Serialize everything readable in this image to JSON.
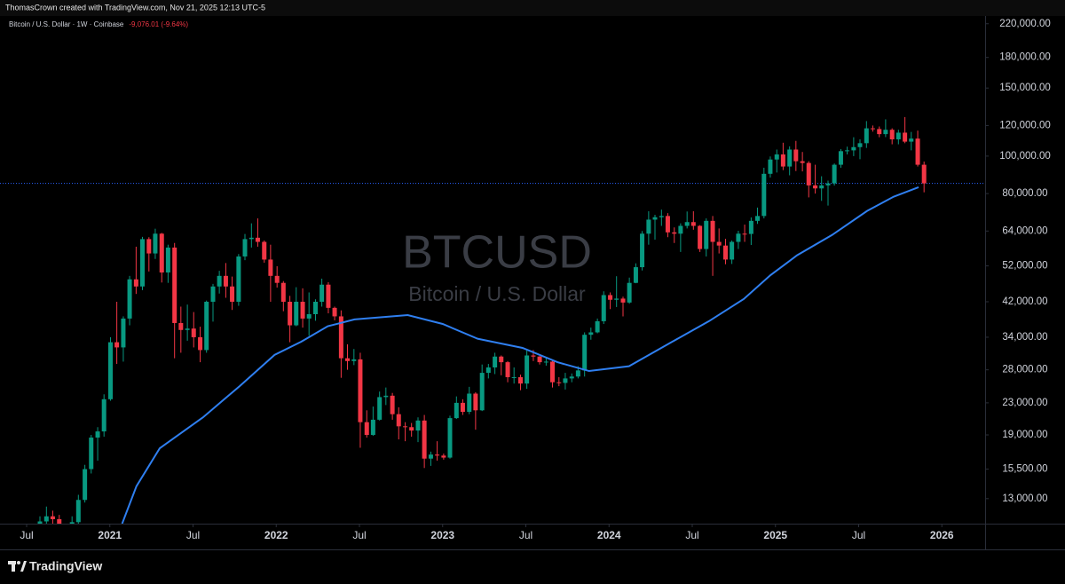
{
  "header": {
    "text": "ThomasCrown created with TradingView.com, Nov 21, 2025 12:13 UTC-5"
  },
  "footer": {
    "brand": "TradingView"
  },
  "chart_data": {
    "type": "candlestick",
    "title": "BTCUSD",
    "subtitle": "Bitcoin / U.S. Dollar",
    "legend_text": "Bitcoin / U.S. Dollar · 1W · Coinbase",
    "change_label": "-9,076.01 (-9.64%)",
    "log_scale": true,
    "grid": false,
    "up_color": "#089981",
    "down_color": "#f23645",
    "x": [
      2020.58,
      2020.619,
      2020.657,
      2020.696,
      2020.734,
      2020.773,
      2020.811,
      2020.85,
      2020.888,
      2020.927,
      2020.965,
      2021.004,
      2021.042,
      2021.081,
      2021.119,
      2021.158,
      2021.196,
      2021.235,
      2021.273,
      2021.312,
      2021.35,
      2021.389,
      2021.427,
      2021.466,
      2021.504,
      2021.543,
      2021.581,
      2021.62,
      2021.658,
      2021.697,
      2021.735,
      2021.774,
      2021.812,
      2021.851,
      2021.889,
      2021.928,
      2021.966,
      2022.005,
      2022.043,
      2022.082,
      2022.12,
      2022.159,
      2022.197,
      2022.236,
      2022.274,
      2022.313,
      2022.351,
      2022.39,
      2022.428,
      2022.467,
      2022.505,
      2022.544,
      2022.582,
      2022.621,
      2022.659,
      2022.698,
      2022.736,
      2022.775,
      2022.813,
      2022.852,
      2022.89,
      2022.929,
      2022.967,
      2023.006,
      2023.044,
      2023.083,
      2023.121,
      2023.16,
      2023.198,
      2023.237,
      2023.275,
      2023.314,
      2023.352,
      2023.391,
      2023.429,
      2023.468,
      2023.506,
      2023.545,
      2023.583,
      2023.622,
      2023.66,
      2023.699,
      2023.737,
      2023.776,
      2023.814,
      2023.853,
      2023.891,
      2023.93,
      2023.968,
      2024.007,
      2024.045,
      2024.084,
      2024.122,
      2024.161,
      2024.199,
      2024.238,
      2024.276,
      2024.315,
      2024.353,
      2024.392,
      2024.43,
      2024.469,
      2024.507,
      2024.546,
      2024.584,
      2024.623,
      2024.661,
      2024.7,
      2024.738,
      2024.777,
      2024.815,
      2024.854,
      2024.892,
      2024.931,
      2024.969,
      2025.008,
      2025.046,
      2025.085,
      2025.123,
      2025.162,
      2025.2,
      2025.239,
      2025.277,
      2025.316,
      2025.354,
      2025.393,
      2025.431,
      2025.47,
      2025.508,
      2025.547,
      2025.585,
      2025.624,
      2025.662,
      2025.701,
      2025.739,
      2025.778,
      2025.816,
      2025.855,
      2025.893
    ],
    "open": [
      11100,
      11350,
      11700,
      11500,
      10300,
      10900,
      11300,
      12900,
      15500,
      18700,
      19400,
      23500,
      33000,
      32000,
      38000,
      48000,
      46000,
      61000,
      56000,
      63000,
      50000,
      58000,
      37000,
      35500,
      35800,
      34000,
      31500,
      42000,
      46000,
      49000,
      46000,
      42000,
      55000,
      61000,
      61500,
      60000,
      54000,
      49000,
      47000,
      42000,
      36500,
      42000,
      38000,
      39000,
      42000,
      46500,
      40500,
      38500,
      30000,
      29500,
      29800,
      20500,
      19000,
      20800,
      23800,
      24000,
      21500,
      20000,
      19900,
      19500,
      20700,
      16500,
      16900,
      16800,
      16600,
      21000,
      23000,
      21800,
      24300,
      22000,
      27500,
      28400,
      30300,
      29300,
      26800,
      26800,
      25800,
      30500,
      30300,
      29300,
      29400,
      26000,
      25900,
      26600,
      26900,
      27900,
      34500,
      35000,
      37400,
      43700,
      42500,
      42800,
      41800,
      47000,
      51600,
      63000,
      68500,
      69500,
      70000,
      63500,
      63000,
      66000,
      67500,
      66000,
      57500,
      68000,
      60000,
      58700,
      54000,
      60000,
      63000,
      62900,
      68000,
      70000,
      90000,
      98000,
      101000,
      94000,
      104000,
      97000,
      96000,
      84000,
      82500,
      84000,
      85000,
      95000,
      103000,
      103500,
      105500,
      108000,
      118000,
      117500,
      114000,
      117000,
      110500,
      115000,
      109000,
      111000,
      95000
    ],
    "high": [
      11700,
      12400,
      12100,
      11800,
      11200,
      11700,
      13300,
      15900,
      19000,
      19900,
      24200,
      34000,
      42000,
      38500,
      49000,
      58300,
      61800,
      61700,
      64900,
      63300,
      59000,
      59600,
      40800,
      41300,
      39500,
      36200,
      42300,
      46700,
      50500,
      52900,
      48800,
      55800,
      62900,
      67000,
      69000,
      60500,
      59000,
      51900,
      47500,
      43500,
      45800,
      45500,
      44400,
      42600,
      48200,
      47200,
      40800,
      39900,
      32600,
      31700,
      31000,
      22000,
      22500,
      24600,
      25200,
      24400,
      22400,
      20500,
      20400,
      21100,
      21400,
      17200,
      18300,
      17000,
      21300,
      23900,
      23500,
      25300,
      24500,
      28900,
      29000,
      31000,
      30500,
      29500,
      28400,
      27200,
      31400,
      31500,
      30400,
      30200,
      29600,
      26800,
      27500,
      27400,
      28600,
      35000,
      36000,
      38000,
      44700,
      44400,
      48900,
      43300,
      48500,
      52800,
      64000,
      72000,
      70500,
      72700,
      71200,
      65400,
      67000,
      71900,
      72000,
      66300,
      69000,
      70000,
      65000,
      61100,
      60500,
      64100,
      66500,
      69400,
      73600,
      93300,
      99800,
      104000,
      108300,
      106000,
      109500,
      102500,
      97000,
      95000,
      88700,
      86400,
      95700,
      104300,
      105800,
      111900,
      110500,
      123200,
      120000,
      119300,
      124500,
      118000,
      117000,
      126200,
      115500,
      116400,
      96800
    ],
    "low": [
      10800,
      11100,
      11200,
      9900,
      10100,
      10500,
      11200,
      12700,
      15100,
      16300,
      18800,
      23300,
      29000,
      29400,
      36500,
      44000,
      45000,
      50300,
      54200,
      47100,
      47000,
      30000,
      31000,
      33300,
      32000,
      29300,
      31000,
      37300,
      44100,
      43000,
      40000,
      41000,
      53800,
      58000,
      58300,
      53000,
      42000,
      45700,
      39700,
      33000,
      36300,
      36000,
      34300,
      37500,
      40800,
      39200,
      37600,
      26700,
      28000,
      28800,
      17600,
      18700,
      18900,
      20700,
      22700,
      20800,
      18500,
      18300,
      18800,
      18200,
      15600,
      15800,
      16300,
      16400,
      16500,
      20900,
      21400,
      21500,
      19600,
      21900,
      26600,
      27300,
      27100,
      26000,
      25800,
      24800,
      25000,
      29500,
      28900,
      28700,
      25200,
      25400,
      24900,
      26000,
      26600,
      26900,
      33500,
      34800,
      36800,
      40200,
      40700,
      38500,
      41500,
      46900,
      50600,
      59000,
      60800,
      66000,
      61700,
      59600,
      56500,
      65000,
      64500,
      56500,
      55000,
      49000,
      56000,
      52500,
      52600,
      57500,
      60000,
      58900,
      66800,
      69000,
      88000,
      90700,
      92000,
      89200,
      91500,
      91300,
      78200,
      80000,
      76600,
      74500,
      83900,
      93300,
      101000,
      100000,
      98200,
      105000,
      115700,
      111900,
      112000,
      107300,
      107300,
      108000,
      103500,
      94000,
      80600
    ],
    "close": [
      11350,
      11700,
      11500,
      10300,
      10900,
      11300,
      12900,
      15500,
      18700,
      19400,
      23500,
      33000,
      32000,
      38000,
      48000,
      46000,
      61000,
      56000,
      63000,
      50000,
      58000,
      37000,
      35500,
      35800,
      34000,
      31500,
      42000,
      46000,
      49000,
      46000,
      42000,
      55000,
      61000,
      61500,
      60000,
      54000,
      49000,
      47000,
      42000,
      36500,
      42000,
      38000,
      39000,
      42000,
      46500,
      40500,
      38500,
      30000,
      29500,
      29800,
      20500,
      19000,
      20800,
      23800,
      24000,
      21500,
      20000,
      19900,
      19500,
      20700,
      16500,
      16900,
      16800,
      16600,
      21000,
      23000,
      21800,
      24300,
      22000,
      27500,
      28400,
      30300,
      29300,
      26800,
      26800,
      25800,
      30500,
      30300,
      29300,
      29400,
      26000,
      25900,
      26600,
      26900,
      27900,
      34500,
      35000,
      37400,
      43700,
      42500,
      42800,
      41800,
      47000,
      51600,
      63000,
      68500,
      69500,
      70000,
      63500,
      63000,
      66000,
      67500,
      66000,
      57500,
      68000,
      60000,
      58700,
      54000,
      60000,
      63000,
      62900,
      68000,
      70000,
      90000,
      98000,
      101000,
      94000,
      104000,
      97000,
      96000,
      84000,
      82500,
      84000,
      85000,
      95000,
      103000,
      103500,
      105500,
      108000,
      118000,
      117500,
      114000,
      117000,
      110500,
      115000,
      109000,
      111000,
      95000,
      85000
    ],
    "series": [
      {
        "type": "line",
        "color": "#2f7ff0",
        "x": [
          2021.074,
          2021.16,
          2021.3,
          2021.56,
          2021.78,
          2021.99,
          2022.15,
          2022.31,
          2022.47,
          2022.79,
          2023.0,
          2023.21,
          2023.48,
          2023.69,
          2023.88,
          2024.12,
          2024.38,
          2024.6,
          2024.81,
          2024.97,
          2025.13,
          2025.34,
          2025.55,
          2025.71,
          2025.86
        ],
        "values": [
          11200,
          14000,
          17550,
          21100,
          25400,
          30600,
          33100,
          36300,
          37800,
          38800,
          36800,
          33700,
          31900,
          29300,
          27800,
          28600,
          33100,
          37400,
          42700,
          49200,
          55400,
          62500,
          72100,
          78500,
          83100
        ]
      }
    ],
    "xlim": [
      2020.34,
      2026.26
    ],
    "ylim": [
      11200,
      228000
    ],
    "xticks": [
      {
        "value": 2020.5,
        "label": "Jul"
      },
      2021,
      {
        "value": 2021.5,
        "label": "Jul"
      },
      2022,
      {
        "value": 2022.5,
        "label": "Jul"
      },
      2023,
      {
        "value": 2023.5,
        "label": "Jul"
      },
      2024,
      {
        "value": 2024.5,
        "label": "Jul"
      },
      2025,
      {
        "value": 2025.5,
        "label": "Jul"
      },
      2026
    ],
    "yticks": [
      {
        "value": 220000,
        "label": "220,000.00"
      },
      {
        "value": 180000,
        "label": "180,000.00"
      },
      {
        "value": 150000,
        "label": "150,000.00"
      },
      {
        "value": 120000,
        "label": "120,000.00"
      },
      {
        "value": 100000,
        "label": "100,000.00"
      },
      {
        "value": 80000,
        "label": "80,000.00"
      },
      {
        "value": 64000,
        "label": "64,000.00"
      },
      {
        "value": 52000,
        "label": "52,000.00"
      },
      {
        "value": 42000,
        "label": "42,000.00"
      },
      {
        "value": 34000,
        "label": "34,000.00"
      },
      {
        "value": 28000,
        "label": "28,000.00"
      },
      {
        "value": 23000,
        "label": "23,000.00"
      },
      {
        "value": 19000,
        "label": "19,000.00"
      },
      {
        "value": 15500,
        "label": "15,500.00"
      },
      {
        "value": 13000,
        "label": "13,000.00"
      }
    ]
  }
}
